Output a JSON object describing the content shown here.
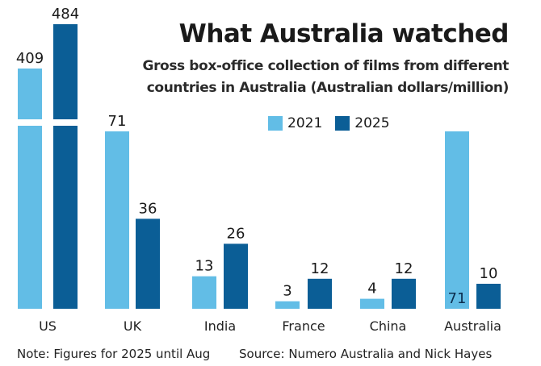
{
  "chart_data": {
    "type": "bar",
    "title": "What Australia watched",
    "subtitle": [
      "Gross box-office collection of films from different",
      "countries in Australia (Australian dollars/million)"
    ],
    "categories": [
      "US",
      "UK",
      "India",
      "France",
      "China",
      "Australia"
    ],
    "series": [
      {
        "name": "2021",
        "color": "#62bde6",
        "values": [
          409,
          71,
          13,
          3,
          4,
          71
        ]
      },
      {
        "name": "2025",
        "color": "#0b5e96",
        "values": [
          484,
          36,
          26,
          12,
          12,
          10
        ]
      }
    ],
    "axis_break": "US bars truncated",
    "legend_position": "top-right",
    "xlabel": "",
    "ylabel": "",
    "grid": false,
    "note": "Note: Figures for 2025 until Aug",
    "source": "Source: Numero Australia  and Nick Hayes"
  }
}
